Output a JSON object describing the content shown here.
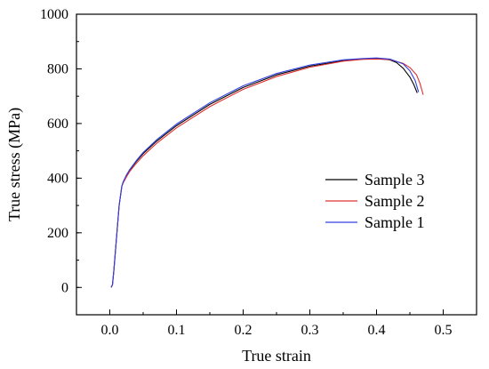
{
  "chart_data": {
    "type": "line",
    "title": "",
    "xlabel": "True strain",
    "ylabel": "True stress (MPa)",
    "xlim": [
      -0.05,
      0.55
    ],
    "ylim": [
      -100,
      1000
    ],
    "xticks": [
      0.0,
      0.1,
      0.2,
      0.3,
      0.4,
      0.5
    ],
    "xtick_labels": [
      "0.0",
      "0.1",
      "0.2",
      "0.3",
      "0.4",
      "0.5"
    ],
    "yticks": [
      0,
      200,
      400,
      600,
      800,
      1000
    ],
    "ytick_labels": [
      "0",
      "200",
      "400",
      "600",
      "800",
      "1000"
    ],
    "grid": false,
    "legend_position": "center-right",
    "series": [
      {
        "name": "Sample 3",
        "color": "#000000",
        "x": [
          0.002,
          0.004,
          0.006,
          0.01,
          0.014,
          0.018,
          0.02,
          0.025,
          0.03,
          0.04,
          0.05,
          0.07,
          0.1,
          0.15,
          0.2,
          0.25,
          0.3,
          0.35,
          0.38,
          0.4,
          0.42,
          0.43,
          0.44,
          0.45,
          0.456,
          0.461
        ],
        "y": [
          0,
          10,
          60,
          180,
          300,
          370,
          385,
          410,
          430,
          462,
          490,
          535,
          592,
          670,
          732,
          778,
          810,
          830,
          836,
          838,
          833,
          823,
          802,
          770,
          742,
          712
        ]
      },
      {
        "name": "Sample 2",
        "color": "#e03030",
        "x": [
          0.002,
          0.004,
          0.006,
          0.01,
          0.014,
          0.018,
          0.02,
          0.025,
          0.03,
          0.04,
          0.05,
          0.07,
          0.1,
          0.15,
          0.2,
          0.25,
          0.3,
          0.35,
          0.38,
          0.4,
          0.42,
          0.44,
          0.45,
          0.46,
          0.465,
          0.47
        ],
        "y": [
          0,
          10,
          60,
          180,
          300,
          370,
          382,
          405,
          425,
          455,
          482,
          527,
          584,
          662,
          725,
          772,
          806,
          828,
          835,
          836,
          834,
          820,
          805,
          778,
          748,
          705
        ]
      },
      {
        "name": "Sample 1",
        "color": "#3040e0",
        "x": [
          0.002,
          0.004,
          0.006,
          0.01,
          0.014,
          0.018,
          0.02,
          0.025,
          0.03,
          0.04,
          0.05,
          0.07,
          0.1,
          0.15,
          0.2,
          0.25,
          0.3,
          0.35,
          0.38,
          0.4,
          0.42,
          0.44,
          0.45,
          0.458,
          0.463
        ],
        "y": [
          0,
          10,
          60,
          180,
          300,
          370,
          386,
          412,
          432,
          465,
          494,
          540,
          598,
          676,
          738,
          783,
          814,
          833,
          838,
          840,
          836,
          818,
          793,
          757,
          715
        ]
      }
    ]
  }
}
